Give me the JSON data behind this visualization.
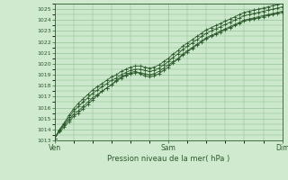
{
  "title": "",
  "xlabel": "Pression niveau de la mer( hPa )",
  "bg_color": "#d0ead0",
  "plot_bg_color": "#cce8cc",
  "grid_color": "#88bb88",
  "line_color": "#2d5a2d",
  "marker_color": "#2d5a2d",
  "tick_label_color": "#2d5a2d",
  "axis_label_color": "#2d5a2d",
  "spine_color": "#2d5a2d",
  "ylim": [
    1013.0,
    1025.5
  ],
  "yticks": [
    1013,
    1014,
    1015,
    1016,
    1017,
    1018,
    1019,
    1020,
    1021,
    1022,
    1023,
    1024,
    1025
  ],
  "xtick_positions": [
    0.0,
    0.5,
    1.0
  ],
  "xtick_labels": [
    "Ven",
    "Sam",
    "Dim"
  ],
  "n_points": 49,
  "series": [
    [
      1013.2,
      1013.8,
      1014.2,
      1014.7,
      1015.2,
      1015.5,
      1015.9,
      1016.3,
      1016.7,
      1017.1,
      1017.5,
      1017.8,
      1018.1,
      1018.5,
      1018.8,
      1019.0,
      1019.2,
      1019.3,
      1019.1,
      1018.9,
      1018.8,
      1018.9,
      1019.1,
      1019.4,
      1019.7,
      1020.1,
      1020.4,
      1020.8,
      1021.1,
      1021.4,
      1021.7,
      1022.0,
      1022.3,
      1022.5,
      1022.7,
      1022.9,
      1023.1,
      1023.3,
      1023.5,
      1023.7,
      1023.9,
      1024.0,
      1024.1,
      1024.2,
      1024.3,
      1024.4,
      1024.5,
      1024.6,
      1024.7
    ],
    [
      1013.2,
      1013.9,
      1014.4,
      1014.9,
      1015.4,
      1015.7,
      1016.1,
      1016.5,
      1016.9,
      1017.2,
      1017.5,
      1017.8,
      1018.1,
      1018.4,
      1018.7,
      1018.9,
      1019.1,
      1019.2,
      1019.2,
      1019.1,
      1019.0,
      1019.1,
      1019.3,
      1019.6,
      1019.9,
      1020.2,
      1020.5,
      1020.9,
      1021.2,
      1021.5,
      1021.8,
      1022.1,
      1022.4,
      1022.6,
      1022.8,
      1023.0,
      1023.2,
      1023.4,
      1023.6,
      1023.8,
      1024.0,
      1024.1,
      1024.2,
      1024.3,
      1024.4,
      1024.5,
      1024.6,
      1024.7,
      1024.8
    ],
    [
      1013.2,
      1013.9,
      1014.5,
      1015.1,
      1015.7,
      1016.1,
      1016.5,
      1016.9,
      1017.3,
      1017.6,
      1017.9,
      1018.2,
      1018.5,
      1018.7,
      1019.0,
      1019.2,
      1019.4,
      1019.5,
      1019.5,
      1019.4,
      1019.3,
      1019.4,
      1019.6,
      1019.9,
      1020.2,
      1020.6,
      1020.9,
      1021.3,
      1021.6,
      1021.9,
      1022.2,
      1022.5,
      1022.8,
      1023.0,
      1023.2,
      1023.4,
      1023.6,
      1023.8,
      1024.0,
      1024.2,
      1024.4,
      1024.5,
      1024.6,
      1024.7,
      1024.8,
      1024.9,
      1025.0,
      1025.1,
      1025.2
    ],
    [
      1013.2,
      1014.0,
      1014.6,
      1015.3,
      1015.9,
      1016.4,
      1016.8,
      1017.2,
      1017.6,
      1017.9,
      1018.2,
      1018.5,
      1018.8,
      1019.0,
      1019.3,
      1019.5,
      1019.7,
      1019.8,
      1019.8,
      1019.7,
      1019.6,
      1019.7,
      1019.9,
      1020.2,
      1020.5,
      1020.9,
      1021.2,
      1021.6,
      1021.9,
      1022.2,
      1022.5,
      1022.8,
      1023.1,
      1023.3,
      1023.5,
      1023.7,
      1023.9,
      1024.1,
      1024.3,
      1024.5,
      1024.7,
      1024.8,
      1024.9,
      1025.0,
      1025.1,
      1025.2,
      1025.3,
      1025.4,
      1025.5
    ]
  ]
}
